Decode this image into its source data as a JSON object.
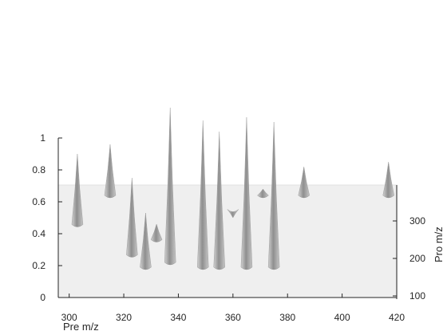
{
  "chart_data": {
    "type": "area",
    "style": "3-D surface (grayscale waterfall)",
    "xlabel": "Pre m/z",
    "ylabel": "Pro m/z",
    "xlim": [
      296,
      420
    ],
    "zlim": [
      0,
      1
    ],
    "ylim": [
      80,
      400
    ],
    "x_ticks": [
      "300",
      "320",
      "340",
      "360",
      "380",
      "400",
      "420"
    ],
    "z_ticks": [
      "0",
      "0.2",
      "0.4",
      "0.6",
      "0.8",
      "1"
    ],
    "y_ticks": [
      "100",
      "200",
      "300"
    ],
    "grid": false,
    "colors": {
      "surface": "#8c8c8c",
      "plane": "#efefef",
      "axis": "#262626"
    },
    "series": [
      {
        "values": [
          {
            "x": 303,
            "y": 270,
            "z": 0.9
          },
          {
            "x": 315,
            "y": 330,
            "z": 0.96
          },
          {
            "x": 323,
            "y": 230,
            "z": 0.75
          },
          {
            "x": 328,
            "y": 210,
            "z": 0.53
          },
          {
            "x": 332,
            "y": 250,
            "z": 0.46
          },
          {
            "x": 337,
            "y": 220,
            "z": 1.19
          },
          {
            "x": 349,
            "y": 200,
            "z": 1.11
          },
          {
            "x": 355,
            "y": 200,
            "z": 1.04
          },
          {
            "x": 360,
            "y": 290,
            "z": 0.5
          },
          {
            "x": 365,
            "y": 170,
            "z": 1.13
          },
          {
            "x": 371,
            "y": 310,
            "z": 0.68
          },
          {
            "x": 375,
            "y": 130,
            "z": 1.1
          },
          {
            "x": 386,
            "y": 320,
            "z": 0.82
          },
          {
            "x": 417,
            "y": 370,
            "z": 0.85
          }
        ]
      }
    ]
  }
}
